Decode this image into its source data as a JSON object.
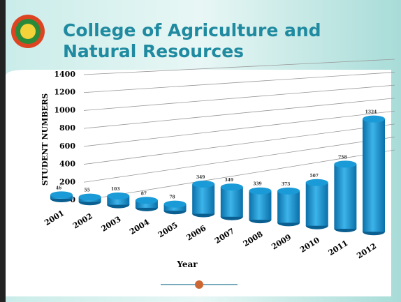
{
  "chart_data": {
    "type": "bar",
    "title": "College of  Agriculture and Natural Resources",
    "y_label": "STUDENT NUMBERS",
    "x_label": "Year",
    "categories": [
      "2001",
      "2002",
      "2003",
      "2004",
      "2005",
      "2006",
      "2007",
      "2008",
      "2009",
      "2010",
      "2011",
      "2012"
    ],
    "values": [
      46,
      55,
      103,
      87,
      78,
      349,
      349,
      339,
      373,
      507,
      758,
      1324
    ],
    "color": "#1a9ad6",
    "ylim": [
      0,
      1400
    ],
    "yticks": [
      0,
      200,
      400,
      600,
      800,
      1000,
      1200,
      1400
    ],
    "grid": true
  }
}
